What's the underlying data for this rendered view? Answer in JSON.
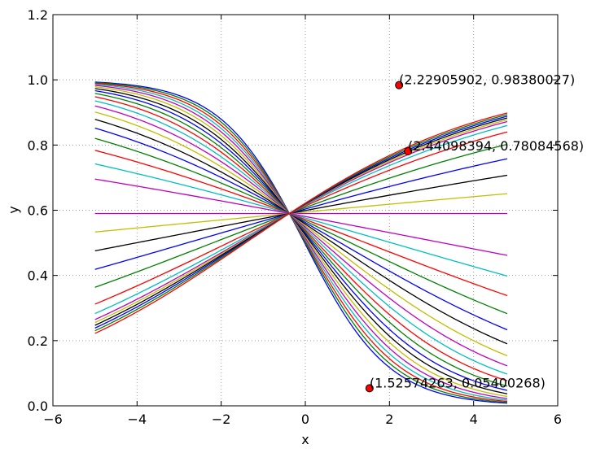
{
  "chart_data": {
    "type": "line",
    "title": "",
    "xlabel": "x",
    "ylabel": "y",
    "xlim": [
      -6,
      6
    ],
    "ylim": [
      0.0,
      1.2
    ],
    "grid": true,
    "x_ticks": [
      "−6",
      "−4",
      "−2",
      "0",
      "2",
      "4",
      "6"
    ],
    "y_ticks": [
      "0.0",
      "0.2",
      "0.4",
      "0.6",
      "0.8",
      "1.0",
      "1.2"
    ],
    "x_tick_values": [
      -6,
      -4,
      -2,
      0,
      2,
      4,
      6
    ],
    "y_tick_values": [
      0.0,
      0.2,
      0.4,
      0.6,
      0.8,
      1.0,
      1.2
    ],
    "x_domain": [
      -5.0,
      4.8
    ],
    "curve_family": "sigmoid family: y = 1 / (1 + exp(-k * (x - x0))) scaled; descending and ascending curves crossing near (-0.4, 0.59)",
    "series": [
      {
        "values_k": -1.0,
        "color": "#0000ff"
      },
      {
        "values_k": -0.95,
        "color": "#008000"
      },
      {
        "values_k": -0.9,
        "color": "#ff0000"
      },
      {
        "values_k": -0.85,
        "color": "#00bfbf"
      },
      {
        "values_k": -0.8,
        "color": "#bf00bf"
      },
      {
        "values_k": -0.75,
        "color": "#bfbf00"
      },
      {
        "values_k": -0.7,
        "color": "#000000"
      },
      {
        "values_k": -0.65,
        "color": "#0000ff"
      },
      {
        "values_k": -0.6,
        "color": "#008000"
      },
      {
        "values_k": -0.55,
        "color": "#ff0000"
      },
      {
        "values_k": -0.5,
        "color": "#00bfbf"
      },
      {
        "values_k": -0.45,
        "color": "#bf00bf"
      },
      {
        "values_k": -0.4,
        "color": "#bfbf00"
      },
      {
        "values_k": -0.35,
        "color": "#000000"
      },
      {
        "values_k": -0.3,
        "color": "#0000ff"
      },
      {
        "values_k": -0.25,
        "color": "#008000"
      },
      {
        "values_k": -0.2,
        "color": "#ff0000"
      },
      {
        "values_k": -0.15,
        "color": "#00bfbf"
      },
      {
        "values_k": -0.1,
        "color": "#bf00bf"
      },
      {
        "values_k": 0.0,
        "color": "#bf00bf"
      },
      {
        "values_k": 0.05,
        "color": "#bfbf00"
      },
      {
        "values_k": 0.1,
        "color": "#000000"
      },
      {
        "values_k": 0.15,
        "color": "#0000ff"
      },
      {
        "values_k": 0.2,
        "color": "#008000"
      },
      {
        "values_k": 0.25,
        "color": "#ff0000"
      },
      {
        "values_k": 0.28,
        "color": "#00bfbf"
      },
      {
        "values_k": 0.3,
        "color": "#bf00bf"
      },
      {
        "values_k": 0.31,
        "color": "#bfbf00"
      },
      {
        "values_k": 0.32,
        "color": "#000000"
      },
      {
        "values_k": 0.33,
        "color": "#0000ff"
      },
      {
        "values_k": 0.34,
        "color": "#008000"
      },
      {
        "values_k": 0.35,
        "color": "#ff0000"
      }
    ],
    "points": [
      {
        "x": 2.22905902,
        "y": 0.98380027,
        "label": "(2.22905902, 0.98380027)",
        "color": "#ff0000"
      },
      {
        "x": 2.44098394,
        "y": 0.78084568,
        "label": "(2.44098394, 0.78084568)",
        "color": "#ff0000"
      },
      {
        "x": 1.52574263,
        "y": 0.05400268,
        "label": "(1.52574263, 0.05400268)",
        "color": "#ff0000"
      }
    ]
  }
}
